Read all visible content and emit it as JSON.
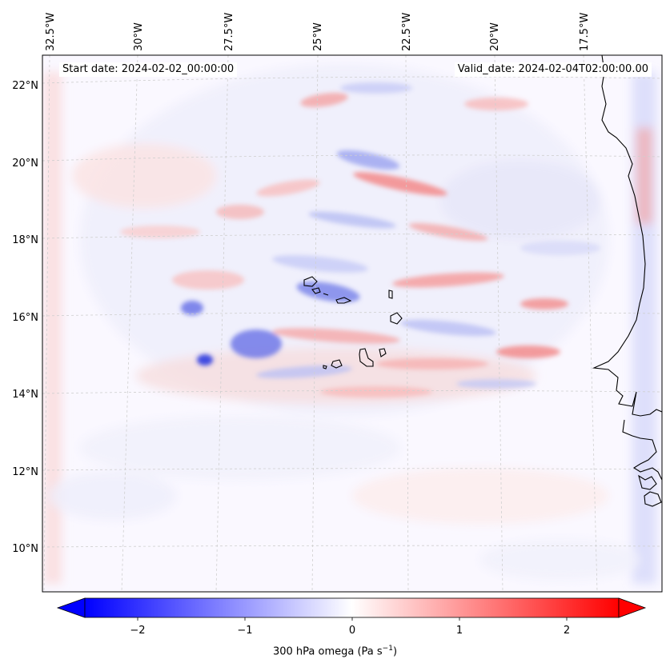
{
  "annotations": {
    "start_date": "Start date: 2024-02-02_00:00:00",
    "valid_date": "Valid_date: 2024-02-04T02:00:00.00"
  },
  "map": {
    "lon_ticks": [
      "32.5°W",
      "30°W",
      "27.5°W",
      "25°W",
      "22.5°W",
      "20°W",
      "17.5°W"
    ],
    "lat_ticks": [
      "22°N",
      "20°N",
      "18°N",
      "16°N",
      "14°N",
      "12°N",
      "10°N"
    ],
    "gridlines": "dashed",
    "coastline_color": "#000000"
  },
  "colorbar": {
    "ticks": [
      "−2",
      "−1",
      "0",
      "1",
      "2"
    ],
    "label_prefix": "300 hPa omega (Pa s",
    "label_exp": "−1",
    "label_suffix": ")",
    "min_color": "#0000ff",
    "mid_color": "#ffffff",
    "max_color": "#ff0000",
    "extend": "both"
  }
}
